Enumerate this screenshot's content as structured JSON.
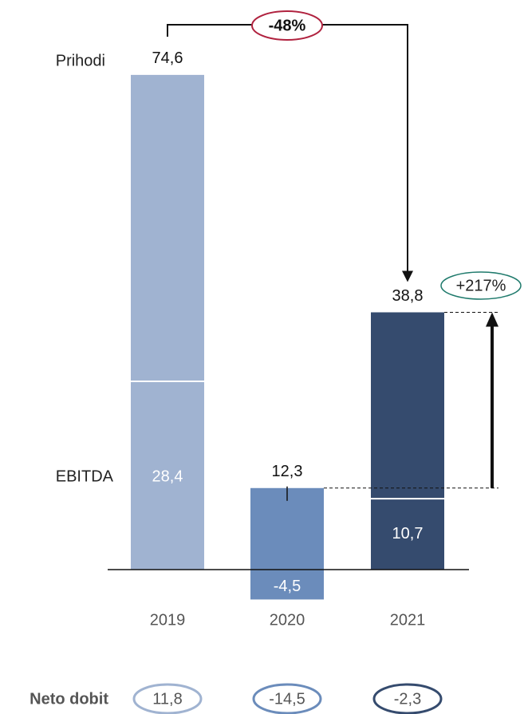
{
  "chart_data": {
    "type": "bar",
    "categories": [
      "2019",
      "2020",
      "2021"
    ],
    "colors": [
      "#a0b3d1",
      "#6b8cbb",
      "#354b6e"
    ],
    "series": [
      {
        "name": "Prihodi",
        "values": [
          74.6,
          12.3,
          38.8
        ],
        "value_labels": [
          "74,6",
          "12,3",
          "38,8"
        ]
      },
      {
        "name": "EBITDA",
        "values": [
          28.4,
          -4.5,
          10.7
        ],
        "value_labels": [
          "28,4",
          "-4,5",
          "10,7"
        ]
      }
    ],
    "net_profit": {
      "name": "Neto dobit",
      "values": [
        11.8,
        -14.5,
        -2.3
      ],
      "value_labels": [
        "11,8",
        "-14,5",
        "-2,3"
      ]
    },
    "ylim": [
      -5,
      80
    ],
    "annotations": [
      {
        "text": "-48%",
        "color": "#b0223f"
      },
      {
        "text": "+217%",
        "color": "#1f7a6c"
      }
    ]
  }
}
